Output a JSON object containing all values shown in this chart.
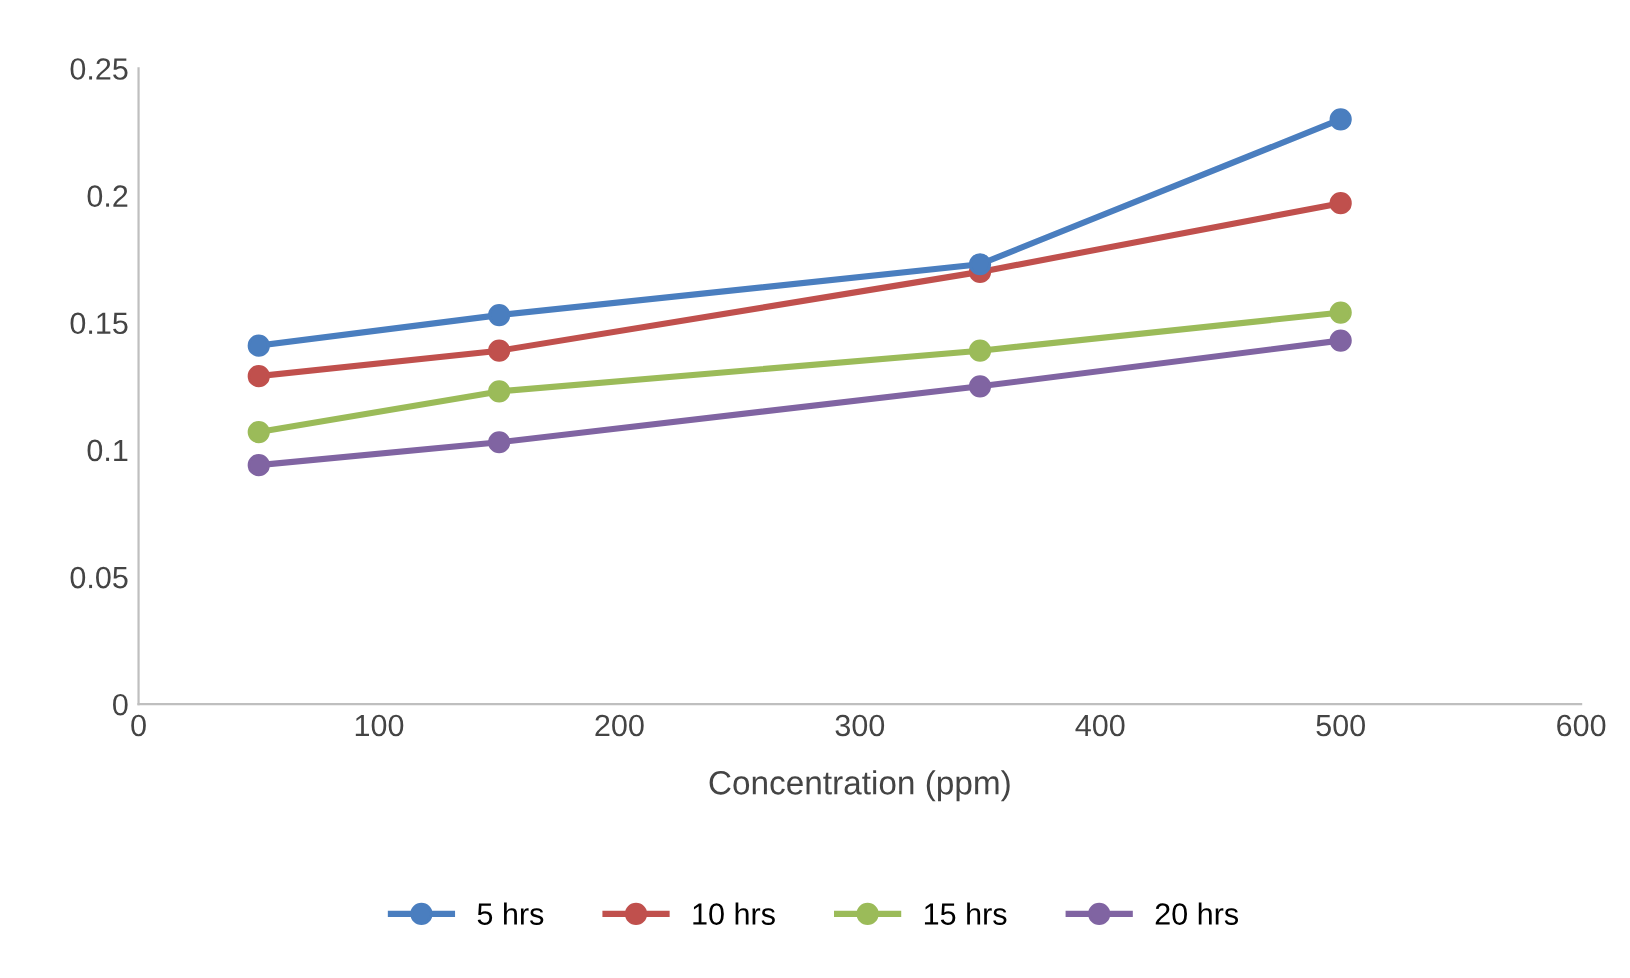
{
  "chart_data": {
    "type": "line",
    "xlabel": "Concentration (ppm)",
    "x": [
      50,
      150,
      350,
      500
    ],
    "xlim": [
      0,
      600
    ],
    "xticks": [
      0,
      100,
      200,
      300,
      400,
      500,
      600
    ],
    "ylim": [
      0,
      0.25
    ],
    "yticks": [
      0,
      0.05,
      0.1,
      0.15,
      0.2,
      0.25
    ],
    "grid": false,
    "legend": "bottom",
    "marker": "circle",
    "line_style": "solid",
    "series": [
      {
        "name": "5 hrs",
        "color": "#4a7ebf",
        "values": [
          0.141,
          0.153,
          0.173,
          0.23
        ]
      },
      {
        "name": "10 hrs",
        "color": "#c0504d",
        "values": [
          0.129,
          0.139,
          0.17,
          0.197
        ]
      },
      {
        "name": "15 hrs",
        "color": "#9bbb59",
        "values": [
          0.107,
          0.123,
          0.139,
          0.154
        ]
      },
      {
        "name": "20 hrs",
        "color": "#8064a2",
        "values": [
          0.094,
          0.103,
          0.125,
          0.143
        ]
      }
    ]
  }
}
